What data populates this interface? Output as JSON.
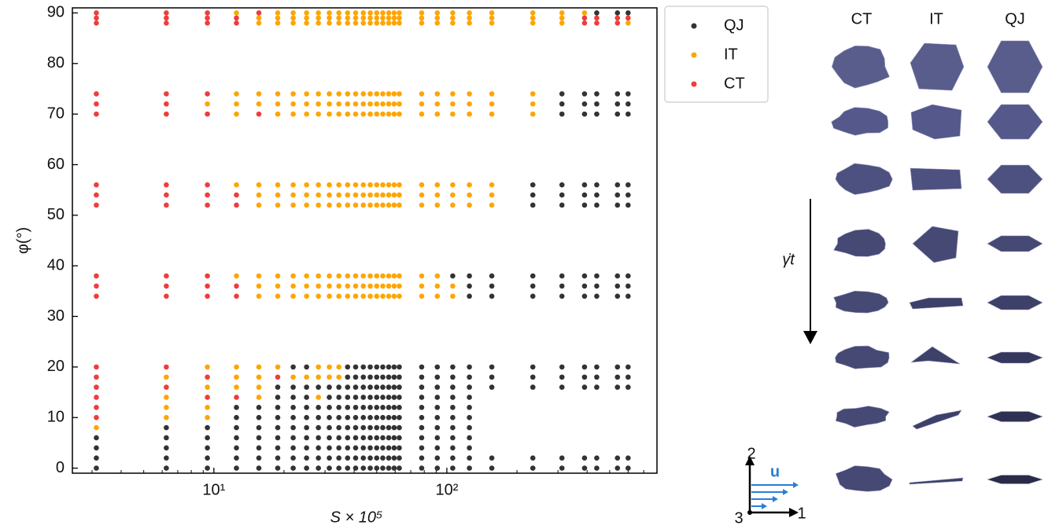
{
  "chart_data": {
    "type": "scatter",
    "xlabel": "S × 10⁵",
    "ylabel": "φ(°)",
    "xscale": "log",
    "xlim": [
      2.47,
      798
    ],
    "ylim": [
      -1,
      91
    ],
    "xticks": [
      {
        "value": 10,
        "label": "10¹"
      },
      {
        "value": 100,
        "label": "10²"
      }
    ],
    "xminorticks": [
      3,
      4,
      5,
      6,
      7,
      8,
      9,
      20,
      30,
      40,
      50,
      60,
      70,
      80,
      90,
      200,
      300,
      400,
      500,
      600,
      700
    ],
    "yticks": [
      0,
      10,
      20,
      30,
      40,
      50,
      60,
      70,
      80,
      90
    ],
    "legend": "outside upper right",
    "x": [
      3.13,
      6.25,
      9.38,
      12.5,
      15.6,
      18.8,
      21.9,
      25,
      28.1,
      31.3,
      34.4,
      37.5,
      40.6,
      43.8,
      46.9,
      50,
      53.1,
      56.3,
      59.4,
      62.5,
      78,
      91,
      106,
      125,
      156,
      234,
      312,
      390,
      440,
      540,
      600
    ],
    "series": [
      {
        "name": "QJ",
        "color": "#333333",
        "values": [
          [
            0,
            2,
            4,
            6
          ],
          [
            0,
            2,
            4,
            6,
            8
          ],
          [
            0,
            2,
            4,
            6,
            8
          ],
          [
            0,
            2,
            4,
            6,
            8,
            10,
            12
          ],
          [
            0,
            2,
            4,
            6,
            8,
            10,
            12
          ],
          [
            0,
            2,
            4,
            6,
            8,
            10,
            12,
            14,
            16
          ],
          [
            0,
            2,
            4,
            6,
            8,
            10,
            12,
            14,
            16,
            20
          ],
          [
            0,
            2,
            4,
            6,
            8,
            10,
            12,
            14,
            16,
            20
          ],
          [
            0,
            2,
            4,
            6,
            8,
            10,
            12,
            16
          ],
          [
            0,
            2,
            4,
            6,
            8,
            10,
            12,
            14,
            16
          ],
          [
            0,
            2,
            4,
            6,
            8,
            10,
            12,
            14,
            16
          ],
          [
            0,
            2,
            4,
            6,
            8,
            10,
            12,
            14,
            16,
            18,
            20
          ],
          [
            0,
            2,
            4,
            6,
            8,
            10,
            12,
            14,
            16,
            18,
            20
          ],
          [
            0,
            2,
            4,
            6,
            8,
            10,
            12,
            14,
            16,
            18,
            20
          ],
          [
            0,
            2,
            4,
            6,
            8,
            10,
            12,
            14,
            16,
            18,
            20
          ],
          [
            0,
            2,
            4,
            6,
            8,
            10,
            12,
            14,
            16,
            18,
            20
          ],
          [
            0,
            2,
            4,
            6,
            8,
            10,
            12,
            14,
            16,
            18,
            20
          ],
          [
            0,
            2,
            4,
            6,
            8,
            10,
            12,
            14,
            16,
            18,
            20
          ],
          [
            0,
            2,
            4,
            6,
            8,
            10,
            12,
            14,
            16,
            18,
            20
          ],
          [
            0,
            2,
            4,
            6,
            8,
            10,
            12,
            14,
            16,
            18,
            20
          ],
          [
            0,
            2,
            4,
            6,
            8,
            10,
            12,
            14,
            16,
            18,
            20
          ],
          [
            0,
            2,
            4,
            6,
            8,
            10,
            12,
            14,
            16,
            18,
            20
          ],
          [
            0,
            2,
            4,
            6,
            8,
            10,
            12,
            14,
            16,
            18,
            20,
            38
          ],
          [
            0,
            2,
            4,
            6,
            8,
            10,
            12,
            14,
            16,
            18,
            20,
            34,
            36,
            38
          ],
          [
            0,
            2,
            16,
            18,
            20,
            34,
            36,
            38
          ],
          [
            0,
            2,
            16,
            18,
            20,
            34,
            36,
            38,
            52,
            54,
            56
          ],
          [
            0,
            2,
            16,
            18,
            20,
            34,
            36,
            38,
            52,
            54,
            56,
            70,
            72,
            74
          ],
          [
            0,
            2,
            16,
            18,
            20,
            34,
            36,
            38,
            52,
            54,
            56,
            70,
            72,
            74
          ],
          [
            0,
            2,
            16,
            18,
            20,
            34,
            36,
            38,
            52,
            54,
            56,
            70,
            72,
            74,
            90
          ],
          [
            0,
            2,
            16,
            18,
            20,
            34,
            36,
            38,
            52,
            54,
            56,
            70,
            72,
            74,
            90
          ],
          [
            0,
            2,
            16,
            18,
            20,
            34,
            36,
            38,
            52,
            54,
            56,
            70,
            72,
            74,
            90
          ]
        ]
      },
      {
        "name": "IT",
        "color": "#ffa500",
        "values": [
          [
            8
          ],
          [
            10,
            12,
            14,
            18
          ],
          [
            10,
            12,
            16,
            20,
            72
          ],
          [
            16,
            18,
            20,
            38,
            56,
            70,
            72,
            74,
            90
          ],
          [
            14,
            16,
            18,
            20,
            34,
            36,
            38,
            52,
            54,
            56,
            72,
            74,
            88,
            89
          ],
          [
            20,
            34,
            36,
            38,
            52,
            54,
            56,
            70,
            72,
            74,
            88,
            89,
            90
          ],
          [
            18,
            34,
            36,
            38,
            52,
            54,
            56,
            70,
            72,
            74,
            88,
            89,
            90
          ],
          [
            18,
            34,
            36,
            38,
            52,
            54,
            56,
            70,
            72,
            74,
            88,
            89,
            90
          ],
          [
            14,
            18,
            20,
            34,
            36,
            38,
            52,
            54,
            56,
            70,
            72,
            74,
            88,
            89,
            90
          ],
          [
            18,
            20,
            34,
            36,
            38,
            52,
            54,
            56,
            70,
            72,
            74,
            88,
            89,
            90
          ],
          [
            18,
            20,
            34,
            36,
            38,
            52,
            54,
            56,
            70,
            72,
            74,
            88,
            89,
            90
          ],
          [
            34,
            36,
            38,
            52,
            54,
            56,
            70,
            72,
            74,
            88,
            89,
            90
          ],
          [
            34,
            36,
            38,
            52,
            54,
            56,
            70,
            72,
            74,
            88,
            89,
            90
          ],
          [
            34,
            36,
            38,
            52,
            54,
            56,
            70,
            72,
            74,
            88,
            89,
            90
          ],
          [
            34,
            36,
            38,
            52,
            54,
            56,
            70,
            72,
            74,
            88,
            89,
            90
          ],
          [
            34,
            36,
            38,
            52,
            54,
            56,
            70,
            72,
            74,
            88,
            89,
            90
          ],
          [
            34,
            36,
            38,
            52,
            54,
            56,
            70,
            72,
            74,
            88,
            89,
            90
          ],
          [
            34,
            36,
            38,
            52,
            54,
            56,
            70,
            72,
            74,
            88,
            89,
            90
          ],
          [
            34,
            36,
            38,
            52,
            54,
            56,
            70,
            72,
            74,
            88,
            89,
            90
          ],
          [
            34,
            36,
            38,
            52,
            54,
            56,
            70,
            72,
            74,
            88,
            89,
            90
          ],
          [
            34,
            36,
            38,
            52,
            54,
            56,
            70,
            72,
            74,
            88,
            89,
            90
          ],
          [
            34,
            36,
            38,
            52,
            54,
            56,
            70,
            72,
            74,
            88,
            89,
            90
          ],
          [
            34,
            36,
            52,
            54,
            56,
            70,
            72,
            74,
            88,
            89,
            90
          ],
          [
            52,
            54,
            56,
            70,
            72,
            74,
            88,
            89,
            90
          ],
          [
            52,
            54,
            56,
            70,
            72,
            74,
            88,
            89,
            90
          ],
          [
            70,
            72,
            74,
            88,
            89,
            90
          ],
          [
            88,
            89,
            90
          ],
          [
            90
          ],
          [],
          [],
          [
            88
          ]
        ]
      },
      {
        "name": "CT",
        "color": "#f03c3c",
        "values": [
          [
            10,
            12,
            14,
            16,
            18,
            20,
            34,
            36,
            38,
            52,
            54,
            56,
            70,
            72,
            74,
            88,
            89,
            90
          ],
          [
            16,
            20,
            34,
            36,
            38,
            52,
            54,
            56,
            70,
            72,
            74,
            88,
            89,
            90
          ],
          [
            14,
            18,
            34,
            36,
            38,
            52,
            54,
            56,
            70,
            74,
            88,
            89,
            90
          ],
          [
            14,
            34,
            36,
            52,
            54,
            88,
            89
          ],
          [
            70,
            90
          ],
          [
            18
          ],
          [],
          [],
          [],
          [],
          [],
          [],
          [],
          [],
          [],
          [],
          [],
          [],
          [],
          [],
          [],
          [],
          [],
          [],
          [],
          [],
          [],
          [
            88,
            89
          ],
          [
            88,
            89
          ],
          [
            88,
            89
          ],
          [
            89
          ]
        ]
      }
    ]
  },
  "panel": {
    "columns": [
      "CT",
      "IT",
      "QJ"
    ],
    "time_label": "γ̇t",
    "axes": {
      "vertical": "2",
      "depth": "3",
      "horizontal": "1",
      "flow": "u"
    }
  }
}
